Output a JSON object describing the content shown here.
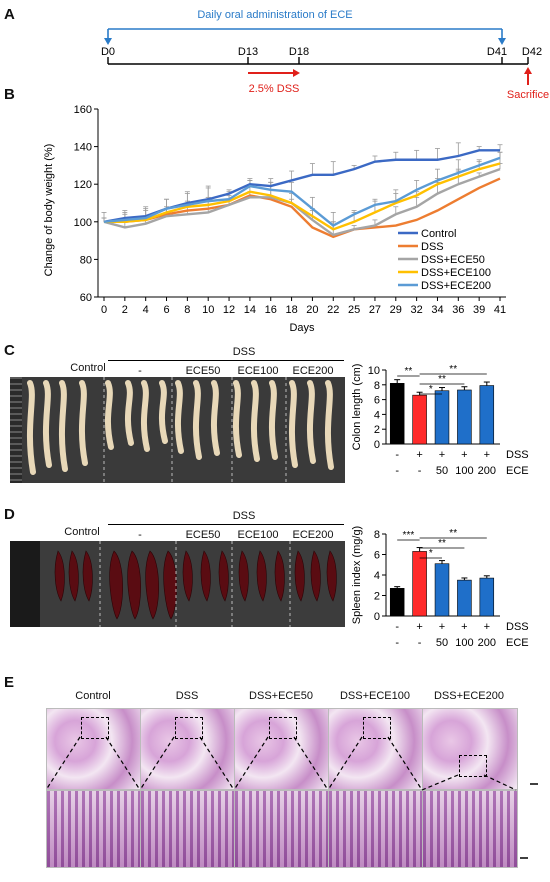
{
  "panels": {
    "A": "A",
    "B": "B",
    "C": "C",
    "D": "D",
    "E": "E"
  },
  "timeline": {
    "admin_label": "Daily oral administration of ECE",
    "ticks": [
      "D0",
      "D13",
      "D18",
      "D41",
      "D42"
    ],
    "dss_label": "2.5% DSS",
    "sacrifice_label": "Sacrifice"
  },
  "colors": {
    "control": "#3b69c4",
    "dss": "#ed7d31",
    "ece50": "#a5a5a5",
    "ece100": "#ffc000",
    "ece200": "#5b9bd5",
    "blue_bar": "#1f6fc9",
    "red_bar": "#ff2a2a",
    "black_bar": "#000000",
    "timeline_blue": "#2a7bc8",
    "timeline_red": "#e0201a"
  },
  "chart_data": [
    {
      "type": "line",
      "ylabel": "Change of body weight (%)",
      "xlabel": "Days",
      "ylim": [
        60,
        160
      ],
      "yticks": [
        60,
        80,
        100,
        120,
        140,
        160
      ],
      "x": [
        "0",
        "2",
        "4",
        "6",
        "8",
        "10",
        "12",
        "14",
        "16",
        "18",
        "20",
        "22",
        "25",
        "27",
        "29",
        "32",
        "34",
        "36",
        "39",
        "41"
      ],
      "series": [
        {
          "name": "Control",
          "values": [
            100,
            102,
            103,
            107,
            110,
            112,
            115,
            120,
            119,
            122,
            125,
            125,
            128,
            132,
            133,
            133,
            133,
            135,
            138,
            138
          ]
        },
        {
          "name": "DSS",
          "values": [
            100,
            100,
            101,
            104,
            106,
            107,
            109,
            114,
            112,
            108,
            97,
            92,
            96,
            97,
            98,
            101,
            106,
            112,
            118,
            123
          ]
        },
        {
          "name": "DSS+ECE50",
          "values": [
            100,
            97,
            99,
            103,
            104,
            105,
            109,
            113,
            113,
            110,
            101,
            93,
            96,
            98,
            104,
            108,
            115,
            120,
            124,
            128
          ]
        },
        {
          "name": "DSS+ECE100",
          "values": [
            100,
            100,
            101,
            105,
            108,
            109,
            111,
            116,
            114,
            110,
            103,
            96,
            100,
            105,
            110,
            114,
            120,
            124,
            128,
            131
          ]
        },
        {
          "name": "DSS+ECE200",
          "values": [
            100,
            101,
            102,
            107,
            109,
            111,
            112,
            119,
            117,
            116,
            107,
            98,
            104,
            109,
            111,
            117,
            122,
            126,
            130,
            134
          ]
        }
      ]
    },
    {
      "type": "bar",
      "ylabel": "Colon length (cm)",
      "ylim": [
        0,
        10
      ],
      "yticks": [
        0,
        2,
        4,
        6,
        8,
        10
      ],
      "values": [
        8.2,
        6.6,
        7.2,
        7.3,
        7.9
      ],
      "row1": [
        "-",
        "+",
        "+",
        "+",
        "+"
      ],
      "row2": [
        "-",
        "-",
        "50",
        "100",
        "200"
      ],
      "row_labels": [
        "DSS",
        "ECE"
      ],
      "sig": [
        "**",
        "*",
        "**",
        "**"
      ]
    },
    {
      "type": "bar",
      "ylabel": "Spleen index (mg/g)",
      "ylim": [
        0,
        8
      ],
      "yticks": [
        0,
        2,
        4,
        6,
        8
      ],
      "values": [
        2.7,
        6.3,
        5.1,
        3.5,
        3.7
      ],
      "row1": [
        "-",
        "+",
        "+",
        "+",
        "+"
      ],
      "row2": [
        "-",
        "-",
        "50",
        "100",
        "200"
      ],
      "row_labels": [
        "DSS",
        "ECE"
      ],
      "sig": [
        "***",
        "*",
        "**",
        "**"
      ]
    }
  ],
  "photos": {
    "group_dss": "DSS",
    "labels": [
      "Control",
      "-",
      "ECE50",
      "ECE100",
      "ECE200"
    ]
  },
  "histology": {
    "labels": [
      "Control",
      "DSS",
      "DSS+ECE50",
      "DSS+ECE100",
      "DSS+ECE200"
    ]
  }
}
